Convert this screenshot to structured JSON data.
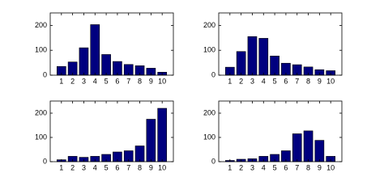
{
  "chart_data": [
    {
      "type": "bar",
      "x": [
        1,
        2,
        3,
        4,
        5,
        6,
        7,
        8,
        9,
        10
      ],
      "values": [
        35,
        53,
        110,
        203,
        83,
        55,
        43,
        38,
        28,
        12
      ],
      "color": "#00007f",
      "xlim": [
        0,
        11
      ],
      "ylim": [
        0,
        250
      ],
      "xticks": [
        1,
        2,
        3,
        4,
        5,
        6,
        7,
        8,
        9,
        10
      ],
      "yticks": [
        0,
        100,
        200
      ]
    },
    {
      "type": "bar",
      "x": [
        1,
        2,
        3,
        4,
        5,
        6,
        7,
        8,
        9,
        10
      ],
      "values": [
        32,
        95,
        155,
        148,
        77,
        48,
        42,
        33,
        22,
        18
      ],
      "color": "#00007f",
      "xlim": [
        0,
        11
      ],
      "ylim": [
        0,
        250
      ],
      "xticks": [
        1,
        2,
        3,
        4,
        5,
        6,
        7,
        8,
        9,
        10
      ],
      "yticks": [
        0,
        100,
        200
      ]
    },
    {
      "type": "bar",
      "x": [
        1,
        2,
        3,
        4,
        5,
        6,
        7,
        8,
        9,
        10
      ],
      "values": [
        8,
        22,
        18,
        22,
        30,
        40,
        45,
        65,
        175,
        220
      ],
      "color": "#00007f",
      "xlim": [
        0,
        11
      ],
      "ylim": [
        0,
        250
      ],
      "xticks": [
        1,
        2,
        3,
        4,
        5,
        6,
        7,
        8,
        9,
        10
      ],
      "yticks": [
        0,
        100,
        200
      ]
    },
    {
      "type": "bar",
      "x": [
        1,
        2,
        3,
        4,
        5,
        6,
        7,
        8,
        9,
        10
      ],
      "values": [
        5,
        10,
        12,
        22,
        30,
        45,
        115,
        127,
        88,
        22
      ],
      "color": "#00007f",
      "xlim": [
        0,
        11
      ],
      "ylim": [
        0,
        250
      ],
      "xticks": [
        1,
        2,
        3,
        4,
        5,
        6,
        7,
        8,
        9,
        10
      ],
      "yticks": [
        0,
        100,
        200
      ]
    }
  ]
}
